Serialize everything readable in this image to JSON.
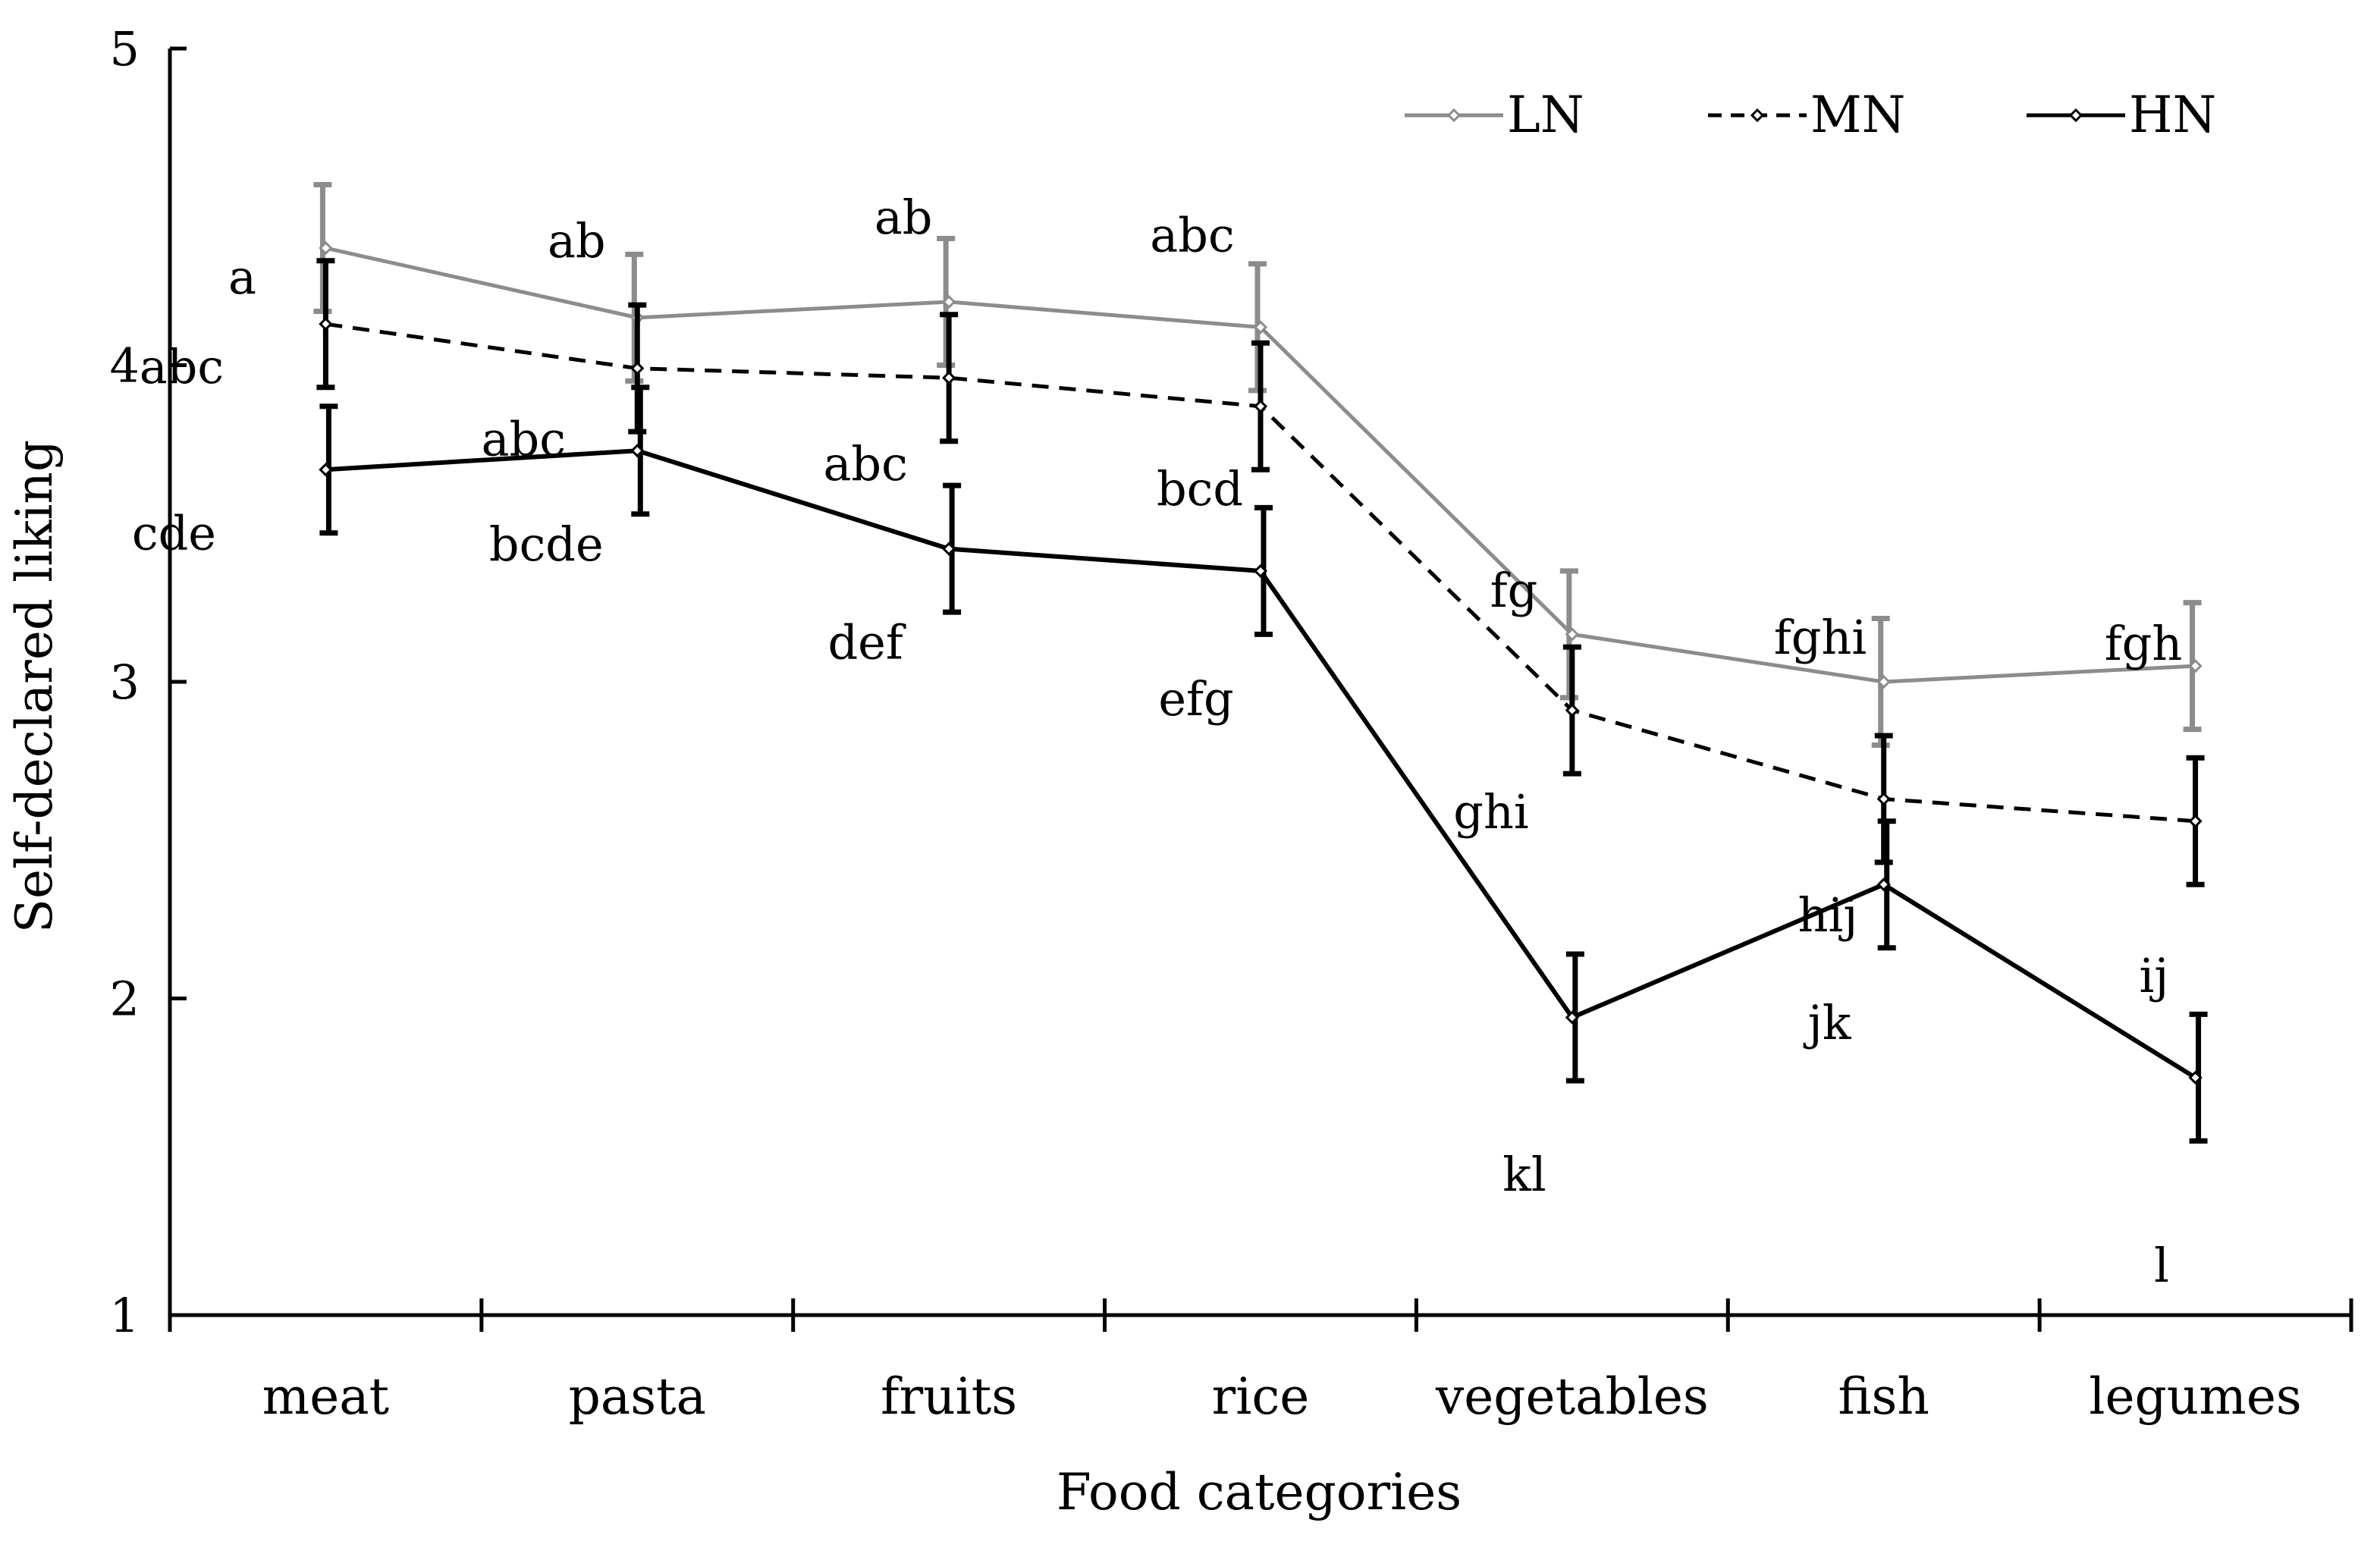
{
  "chart_data": {
    "type": "line",
    "xlabel": "Food categories",
    "ylabel": "Self-declared liking",
    "ylim": [
      1,
      5
    ],
    "yticks": [
      "1",
      "2",
      "3",
      "4",
      "5"
    ],
    "categories": [
      "meat",
      "pasta",
      "fruits",
      "rice",
      "vegetables",
      "fish",
      "legumes"
    ],
    "legend_position": "top-right",
    "grid": false,
    "series": [
      {
        "name": "LN",
        "color": "#8c8c8c",
        "dash": "solid",
        "values": [
          4.37,
          4.15,
          4.2,
          4.12,
          3.15,
          3.0,
          3.05
        ],
        "error": [
          0.2,
          0.2,
          0.2,
          0.2,
          0.2,
          0.2,
          0.2
        ],
        "significance": [
          "a",
          "ab",
          "ab",
          "abc",
          "fg",
          "fghi",
          "fgh"
        ]
      },
      {
        "name": "MN",
        "color": "#000000",
        "dash": "dashed",
        "values": [
          4.13,
          3.99,
          3.96,
          3.87,
          2.91,
          2.63,
          2.56
        ],
        "error": [
          0.2,
          0.2,
          0.2,
          0.2,
          0.2,
          0.2,
          0.2
        ],
        "significance": [
          "abc",
          "abc",
          "abc",
          "bcd",
          "ghi",
          "hij",
          "ij"
        ]
      },
      {
        "name": "HN",
        "color": "#000000",
        "dash": "solid",
        "values": [
          3.67,
          3.73,
          3.42,
          3.35,
          1.94,
          2.36,
          1.75
        ],
        "error": [
          0.2,
          0.2,
          0.2,
          0.2,
          0.2,
          0.2,
          0.2
        ],
        "significance": [
          "cde",
          "bcde",
          "def",
          "efg",
          "kl",
          "jk",
          "l"
        ]
      }
    ]
  }
}
